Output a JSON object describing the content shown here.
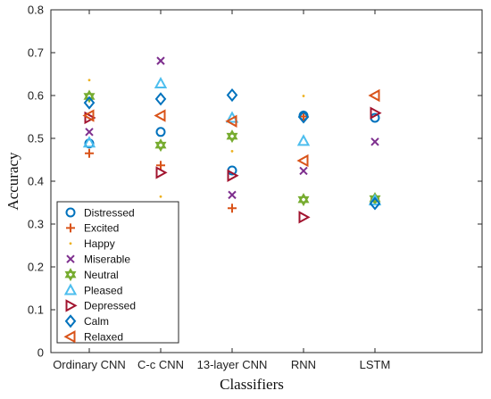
{
  "chart_data": {
    "type": "scatter",
    "title": "",
    "xlabel": "Classifiers",
    "ylabel": "Accuracy",
    "categories": [
      "Ordinary CNN",
      "C-c CNN",
      "13-layer CNN",
      "RNN",
      "LSTM"
    ],
    "ylim": [
      0,
      0.8
    ],
    "yticks": [
      "0",
      "0.1",
      "0.2",
      "0.3",
      "0.4",
      "0.5",
      "0.6",
      "0.7",
      "0.8"
    ],
    "grid": false,
    "legend_position": "bottom-left",
    "series": [
      {
        "name": "Distressed",
        "marker": "circle",
        "color": "#0072BD",
        "values": [
          0.488,
          0.515,
          0.425,
          0.553,
          0.548
        ]
      },
      {
        "name": "Excited",
        "marker": "plus",
        "color": "#D95319",
        "values": [
          0.465,
          0.437,
          0.337,
          0.551,
          0.358
        ]
      },
      {
        "name": "Happy",
        "marker": "dot",
        "color": "#EDB120",
        "values": [
          0.636,
          0.364,
          0.47,
          0.599,
          0.358
        ]
      },
      {
        "name": "Miserable",
        "marker": "x",
        "color": "#7E2F8E",
        "values": [
          0.515,
          0.681,
          0.368,
          0.424,
          0.492
        ]
      },
      {
        "name": "Neutral",
        "marker": "hexagram",
        "color": "#77AC30",
        "values": [
          0.598,
          0.484,
          0.505,
          0.357,
          0.359
        ]
      },
      {
        "name": "Pleased",
        "marker": "triangle-up",
        "color": "#4DBEEE",
        "values": [
          0.49,
          0.628,
          0.548,
          0.494,
          0.355
        ]
      },
      {
        "name": "Depressed",
        "marker": "triangle-right",
        "color": "#A2142F",
        "values": [
          0.548,
          0.42,
          0.413,
          0.316,
          0.559
        ]
      },
      {
        "name": "Calm",
        "marker": "diamond",
        "color": "#0072BD",
        "values": [
          0.583,
          0.592,
          0.601,
          0.55,
          0.348
        ]
      },
      {
        "name": "Relaxed",
        "marker": "triangle-left",
        "color": "#D95319",
        "values": [
          0.553,
          0.553,
          0.54,
          0.448,
          0.6
        ]
      }
    ]
  }
}
